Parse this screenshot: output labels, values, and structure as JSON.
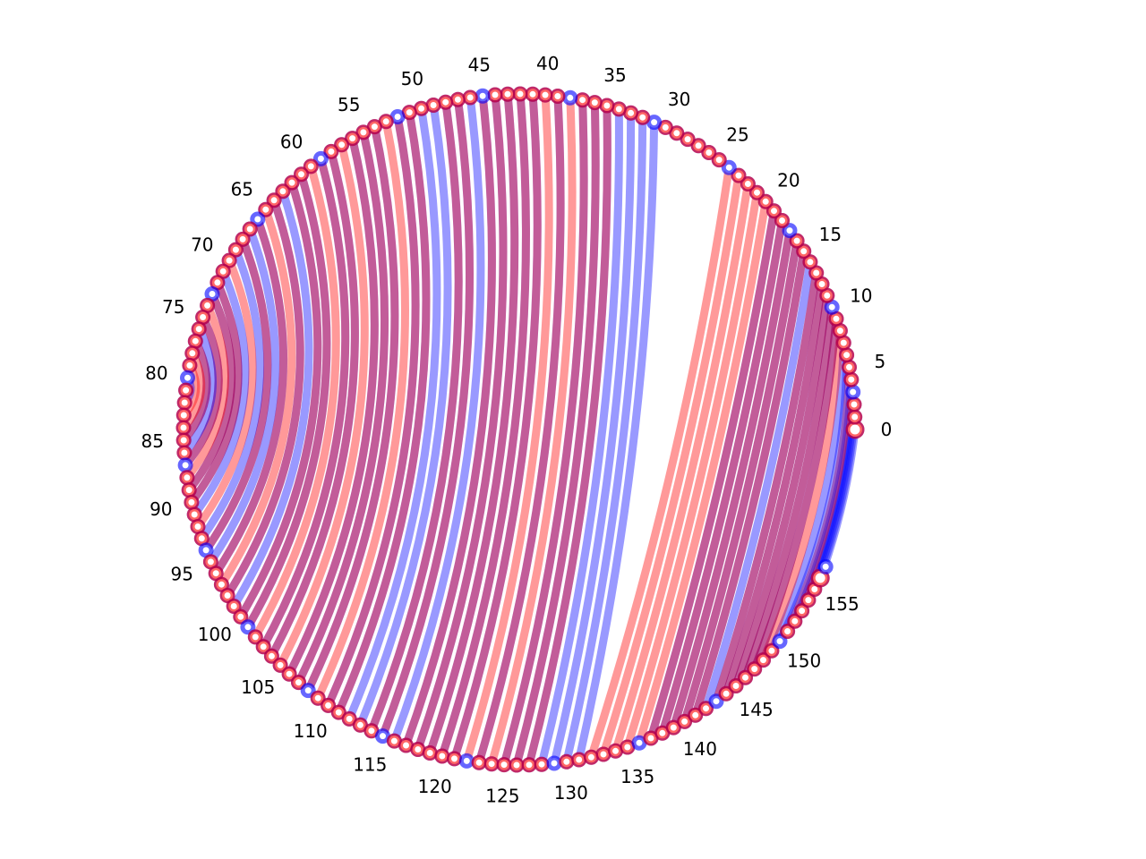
{
  "chart_data": {
    "type": "chord",
    "node_count": 158,
    "tick_step": 5,
    "tick_labels": [
      "0",
      "5",
      "10",
      "15",
      "20",
      "25",
      "30",
      "35",
      "40",
      "45",
      "50",
      "55",
      "60",
      "65",
      "70",
      "75",
      "80",
      "85",
      "90",
      "95",
      "100",
      "105",
      "110",
      "115",
      "120",
      "125",
      "130",
      "135",
      "140",
      "145",
      "150",
      "155"
    ],
    "series": [
      {
        "color": "#0000ff"
      },
      {
        "color": "#ff0000"
      }
    ],
    "chords": [
      [
        0,
        156,
        "b"
      ],
      [
        1,
        155,
        "b"
      ],
      [
        2,
        154,
        "b"
      ],
      [
        3,
        153,
        "b"
      ],
      [
        4,
        152,
        "b"
      ],
      [
        5,
        151,
        "r"
      ],
      [
        6,
        150,
        "b"
      ],
      [
        7,
        149,
        "b"
      ],
      [
        8,
        148,
        "r"
      ],
      [
        9,
        147,
        "m"
      ],
      [
        10,
        146,
        "m"
      ],
      [
        11,
        145,
        "m"
      ],
      [
        12,
        144,
        "m"
      ],
      [
        13,
        143,
        "m"
      ],
      [
        14,
        142,
        "b"
      ],
      [
        15,
        141,
        "m"
      ],
      [
        16,
        140,
        "m"
      ],
      [
        17,
        139,
        "m"
      ],
      [
        18,
        138,
        "m"
      ],
      [
        19,
        137,
        "m"
      ],
      [
        20,
        136,
        "r"
      ],
      [
        21,
        135,
        "r"
      ],
      [
        22,
        134,
        "r"
      ],
      [
        23,
        133,
        "r"
      ],
      [
        24,
        132,
        "r"
      ],
      [
        31,
        131,
        "b"
      ],
      [
        32,
        130,
        "b"
      ],
      [
        33,
        129,
        "b"
      ],
      [
        34,
        128,
        "b"
      ],
      [
        35,
        127,
        "m"
      ],
      [
        36,
        126,
        "m"
      ],
      [
        37,
        125,
        "m"
      ],
      [
        38,
        124,
        "r"
      ],
      [
        39,
        123,
        "m"
      ],
      [
        40,
        122,
        "r"
      ],
      [
        41,
        121,
        "m"
      ],
      [
        42,
        120,
        "m"
      ],
      [
        43,
        119,
        "m"
      ],
      [
        44,
        118,
        "m"
      ],
      [
        45,
        117,
        "m"
      ],
      [
        46,
        116,
        "b"
      ],
      [
        47,
        115,
        "m"
      ],
      [
        48,
        114,
        "m"
      ],
      [
        49,
        113,
        "b"
      ],
      [
        50,
        112,
        "b"
      ],
      [
        51,
        111,
        "m"
      ],
      [
        52,
        110,
        "m"
      ],
      [
        53,
        109,
        "r"
      ],
      [
        54,
        108,
        "m"
      ],
      [
        55,
        107,
        "m"
      ],
      [
        56,
        106,
        "m"
      ],
      [
        57,
        105,
        "r"
      ],
      [
        58,
        104,
        "m"
      ],
      [
        59,
        103,
        "m"
      ],
      [
        60,
        102,
        "r"
      ],
      [
        61,
        101,
        "m"
      ],
      [
        62,
        100,
        "m"
      ],
      [
        63,
        99,
        "b"
      ],
      [
        64,
        98,
        "m"
      ],
      [
        65,
        97,
        "r"
      ],
      [
        66,
        96,
        "m"
      ],
      [
        67,
        95,
        "b"
      ],
      [
        68,
        94,
        "m"
      ],
      [
        69,
        93,
        "b"
      ],
      [
        70,
        92,
        "r"
      ],
      [
        71,
        91,
        "b"
      ],
      [
        72,
        90,
        "m"
      ],
      [
        73,
        89,
        "m"
      ],
      [
        74,
        88,
        "r"
      ],
      [
        75,
        87,
        "m"
      ],
      [
        76,
        86,
        "b"
      ],
      [
        77,
        85,
        "m"
      ],
      [
        78,
        84,
        "r"
      ],
      [
        79,
        83,
        "r"
      ],
      [
        80,
        82,
        "b"
      ],
      [
        81,
        81,
        "m"
      ]
    ]
  }
}
